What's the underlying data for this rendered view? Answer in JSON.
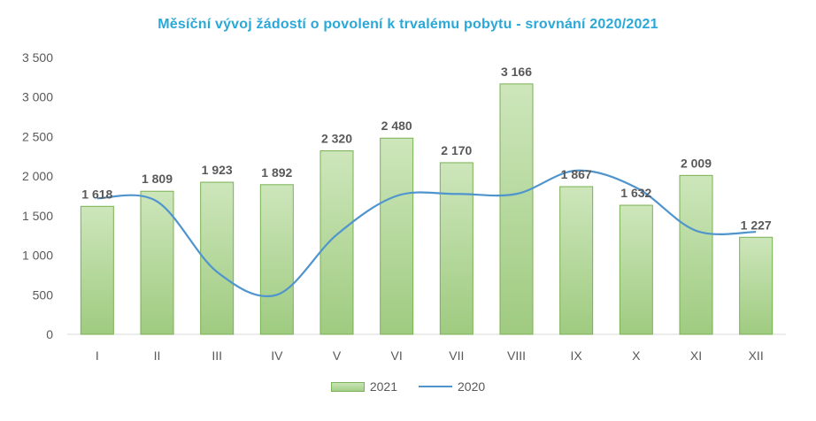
{
  "chart_data": {
    "type": "bar",
    "title": "Měsíční vývoj žádostí o povolení k trvalému pobytu - srovnání 2020/2021",
    "categories": [
      "I",
      "II",
      "III",
      "IV",
      "V",
      "VI",
      "VII",
      "VIII",
      "IX",
      "X",
      "XI",
      "XII"
    ],
    "series": [
      {
        "name": "2021",
        "kind": "bar",
        "values": [
          1618,
          1809,
          1923,
          1892,
          2320,
          2480,
          2170,
          3166,
          1867,
          1632,
          2009,
          1227
        ],
        "labels": [
          "1 618",
          "1 809",
          "1 923",
          "1 892",
          "2 320",
          "2 480",
          "2 170",
          "3 166",
          "1 867",
          "1 632",
          "2 009",
          "1 227"
        ],
        "color": "#a9d18e"
      },
      {
        "name": "2020",
        "kind": "line",
        "values": [
          1720,
          1680,
          790,
          500,
          1260,
          1750,
          1775,
          1775,
          2070,
          1855,
          1310,
          1295
        ],
        "color": "#4f94cd"
      }
    ],
    "ylim": [
      0,
      3500
    ],
    "yticks": [
      0,
      500,
      1000,
      1500,
      2000,
      2500,
      3000,
      3500
    ],
    "ytick_labels": [
      "0",
      "500",
      "1 000",
      "1 500",
      "2 000",
      "2 500",
      "3 000",
      "3 500"
    ],
    "grid": false,
    "legend_position": "bottom"
  }
}
